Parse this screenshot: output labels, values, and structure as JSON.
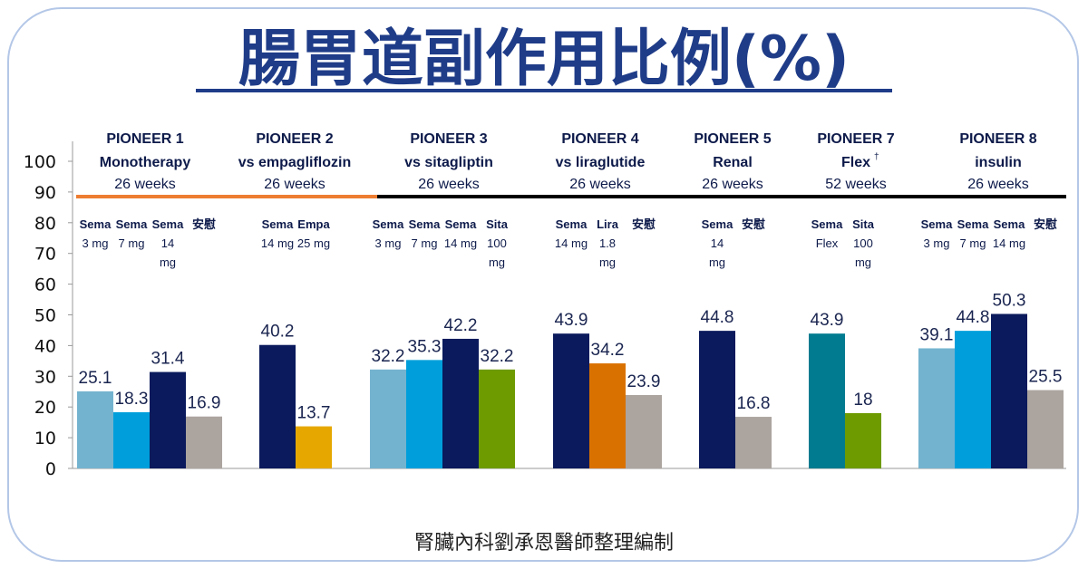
{
  "title": "腸胃道副作用比例(%)",
  "footer": "腎臟內科劉承恩醫師整理編制",
  "colors": {
    "title": "#1f3c88",
    "header": "#0d1a4a",
    "label": "#1a2550",
    "orange": "#ed7d31",
    "black": "#000000",
    "sema3": "#74b3cf",
    "sema7": "#009fdb",
    "sema14": "#0a1a5c",
    "placebo": "#aca49f",
    "empa": "#e6a800",
    "sita": "#6e9b00",
    "lira": "#d97100",
    "flex": "#007b8f"
  },
  "chart_data": {
    "type": "bar",
    "ylim": [
      0,
      100
    ],
    "yticks": [
      "0",
      "10",
      "20",
      "30",
      "40",
      "50",
      "60",
      "70",
      "80",
      "90",
      "100"
    ],
    "groups": [
      {
        "name": "PIONEER 1",
        "subtitle": "Monotherapy",
        "duration": "26 weeks",
        "bars": [
          {
            "drug": "Sema",
            "dose": [
              "3 mg"
            ],
            "value": 25.1,
            "label": "25.1",
            "color": "sema3"
          },
          {
            "drug": "Sema",
            "dose": [
              "7 mg"
            ],
            "value": 18.3,
            "label": "18.3",
            "color": "sema7"
          },
          {
            "drug": "Sema",
            "dose": [
              "14",
              "mg"
            ],
            "value": 31.4,
            "label": "31.4",
            "color": "sema14"
          },
          {
            "drug": "安慰",
            "dose": [],
            "value": 16.9,
            "label": "16.9",
            "color": "placebo"
          }
        ]
      },
      {
        "name": "PIONEER 2",
        "subtitle": "vs empagliflozin",
        "duration": "26 weeks",
        "bars": [
          {
            "drug": "Sema",
            "dose": [
              "14 mg"
            ],
            "value": 40.2,
            "label": "40.2",
            "color": "sema14"
          },
          {
            "drug": "Empa",
            "dose": [
              "25 mg"
            ],
            "value": 13.7,
            "label": "13.7",
            "color": "empa"
          }
        ]
      },
      {
        "name": "PIONEER 3",
        "subtitle": "vs sitagliptin",
        "duration": "26 weeks",
        "bars": [
          {
            "drug": "Sema",
            "dose": [
              "3 mg"
            ],
            "value": 32.2,
            "label": "32.2",
            "color": "sema3"
          },
          {
            "drug": "Sema",
            "dose": [
              "7 mg"
            ],
            "value": 35.3,
            "label": "35.3",
            "color": "sema7"
          },
          {
            "drug": "Sema",
            "dose": [
              "14 mg"
            ],
            "value": 42.2,
            "label": "42.2",
            "color": "sema14"
          },
          {
            "drug": "Sita",
            "dose": [
              "100",
              "mg"
            ],
            "value": 32.2,
            "label": "32.2",
            "color": "sita"
          }
        ]
      },
      {
        "name": "PIONEER 4",
        "subtitle": "vs liraglutide",
        "duration": "26 weeks",
        "bars": [
          {
            "drug": "Sema",
            "dose": [
              "14 mg"
            ],
            "value": 43.9,
            "label": "43.9",
            "color": "sema14"
          },
          {
            "drug": "Lira",
            "dose": [
              "1.8",
              "mg"
            ],
            "value": 34.2,
            "label": "34.2",
            "color": "lira"
          },
          {
            "drug": "安慰",
            "dose": [],
            "value": 23.9,
            "label": "23.9",
            "color": "placebo"
          }
        ]
      },
      {
        "name": "PIONEER 5",
        "subtitle": "Renal",
        "duration": "26 weeks",
        "bars": [
          {
            "drug": "Sema",
            "dose": [
              "14",
              "mg"
            ],
            "value": 44.8,
            "label": "44.8",
            "color": "sema14"
          },
          {
            "drug": "安慰",
            "dose": [],
            "value": 16.8,
            "label": "16.8",
            "color": "placebo"
          }
        ]
      },
      {
        "name": "PIONEER 7",
        "subtitle": "Flex",
        "subtitle_sup": "†",
        "duration": "52 weeks",
        "bars": [
          {
            "drug": "Sema",
            "dose": [
              "Flex"
            ],
            "value": 43.9,
            "label": "43.9",
            "color": "flex"
          },
          {
            "drug": "Sita",
            "dose": [
              "100",
              "mg"
            ],
            "value": 18,
            "label": "18",
            "color": "sita"
          }
        ]
      },
      {
        "name": "PIONEER 8",
        "subtitle": "insulin",
        "duration": "26 weeks",
        "bars": [
          {
            "drug": "Sema",
            "dose": [
              "3 mg"
            ],
            "value": 39.1,
            "label": "39.1",
            "color": "sema3"
          },
          {
            "drug": "Sema",
            "dose": [
              "7 mg"
            ],
            "value": 44.8,
            "label": "44.8",
            "color": "sema7"
          },
          {
            "drug": "Sema",
            "dose": [
              "14 mg"
            ],
            "value": 50.3,
            "label": "50.3",
            "color": "sema14"
          },
          {
            "drug": "安慰",
            "dose": [],
            "value": 25.5,
            "label": "25.5",
            "color": "placebo"
          }
        ]
      }
    ]
  }
}
